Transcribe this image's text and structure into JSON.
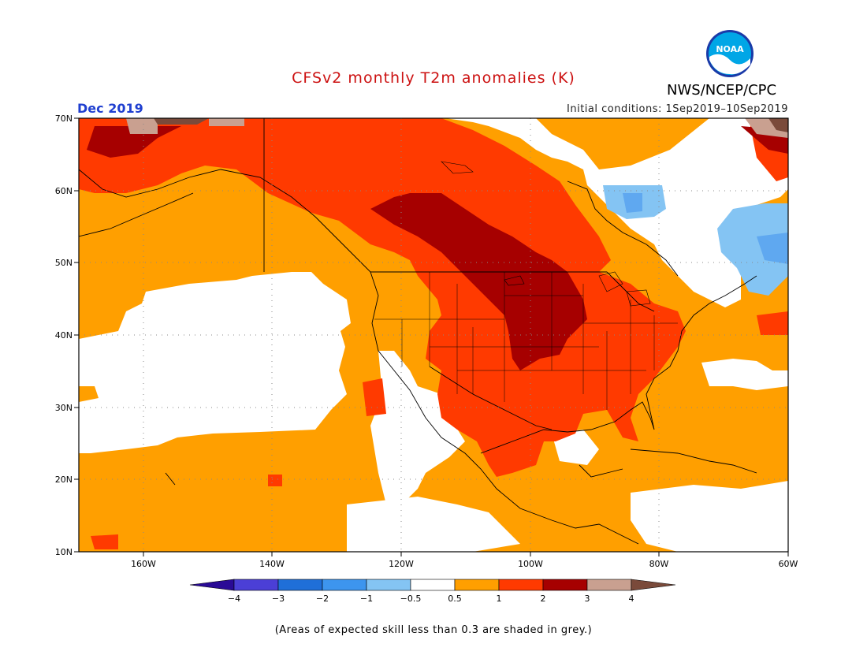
{
  "title": "CFSv2 monthly T2m anomalies (K)",
  "agency": "NWS/NCEP/CPC",
  "logo_text": "NOAA",
  "month": "Dec 2019",
  "initial_conditions": "Initial conditions: 1Sep2019–10Sep2019",
  "note": "(Areas of expected skill less than 0.3 are shaded in grey.)",
  "y_ticks": [
    "70N",
    "60N",
    "50N",
    "40N",
    "30N",
    "20N",
    "10N"
  ],
  "x_ticks": [
    "160W",
    "140W",
    "120W",
    "100W",
    "80W",
    "60W"
  ],
  "legend": {
    "labels": [
      "-4",
      "-3",
      "-2",
      "-1",
      "-0.5",
      "0.5",
      "1",
      "2",
      "3",
      "4"
    ],
    "colors": [
      "#2a0b96",
      "#4b3fd6",
      "#1f6fd8",
      "#3d95ee",
      "#84c4f3",
      "#ffffff",
      "#ff9f00",
      "#ff3a00",
      "#a60000",
      "#c9a090",
      "#7a4a3a"
    ]
  },
  "anomaly_colors": {
    "warm1": "#ff9f00",
    "warm2": "#ff3a00",
    "warm3": "#a60000",
    "warm4": "#c9a090",
    "warm5": "#7a4a3a",
    "cold1": "#84c4f3",
    "cold2": "#5fa8f0"
  }
}
